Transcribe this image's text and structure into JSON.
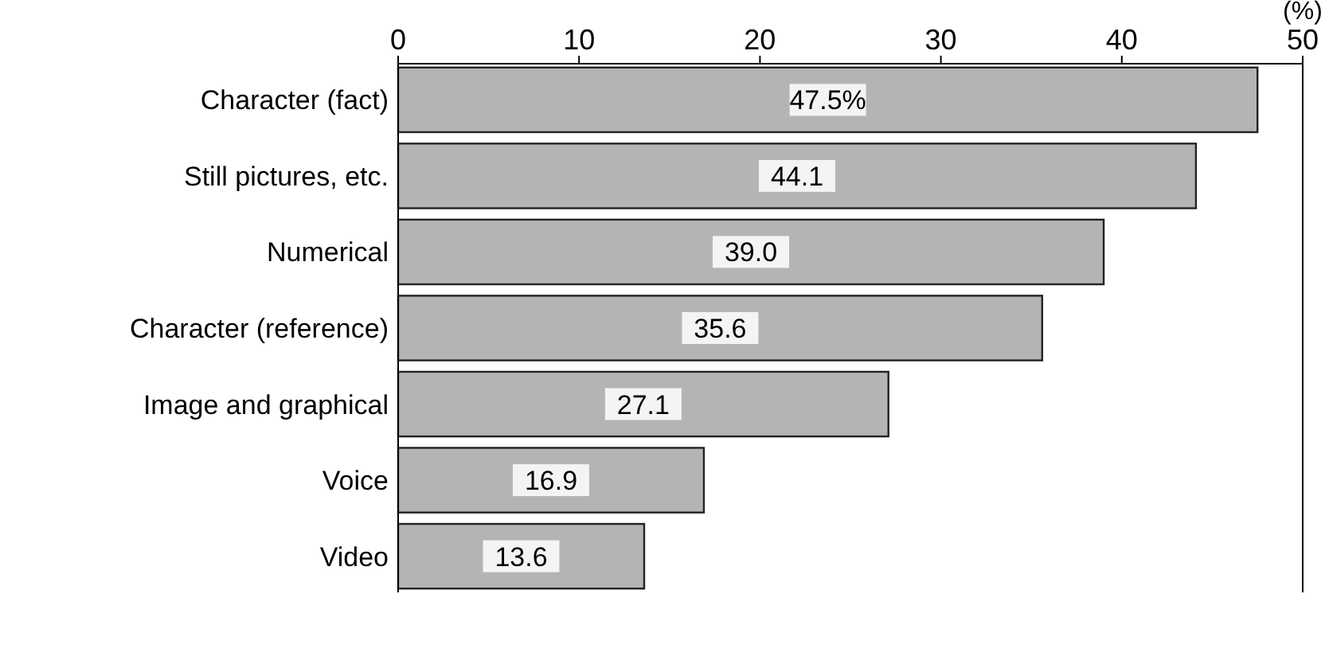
{
  "chart_data": {
    "type": "bar",
    "orientation": "horizontal",
    "xlabel": "(%)",
    "categories": [
      "Character (fact)",
      "Still pictures, etc.",
      "Numerical",
      "Character (reference)",
      "Image and graphical",
      "Voice",
      "Video"
    ],
    "values": [
      47.5,
      44.1,
      39.0,
      35.6,
      27.1,
      16.9,
      13.6
    ],
    "value_labels": [
      "47.5%",
      "44.1",
      "39.0",
      "35.6",
      "27.1",
      "16.9",
      "13.6"
    ],
    "color": "#b4b4b4",
    "xlim": [
      0,
      50
    ],
    "xticks": [
      0,
      10,
      20,
      30,
      40,
      50
    ],
    "grid": false
  }
}
